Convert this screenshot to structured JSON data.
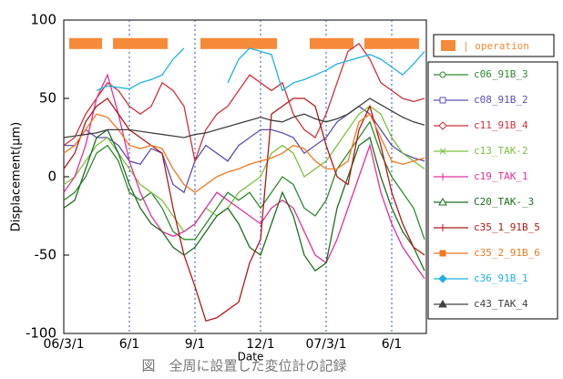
{
  "chart_data": {
    "type": "line",
    "ylabel": "Displacement(μm)",
    "xlabel": "Date",
    "caption": "図　全周に設置した変位計の記録",
    "ylim": [
      -100,
      100
    ],
    "yticks": [
      -100,
      -50,
      0,
      50,
      100
    ],
    "grid": true,
    "categories": [
      "06/3/1",
      null,
      null,
      null,
      null,
      null,
      "6/1",
      null,
      null,
      null,
      null,
      null,
      "9/1",
      null,
      null,
      null,
      null,
      null,
      "12/1",
      null,
      null,
      null,
      null,
      null,
      "07/3/1",
      null,
      null,
      null,
      null,
      null,
      "6/1",
      null,
      null,
      null
    ],
    "operation": {
      "name": "| operation",
      "color": "#f58a3a",
      "values": [
        null,
        85,
        85,
        85,
        null,
        85,
        85,
        85,
        85,
        85,
        null,
        null,
        null,
        85,
        85,
        85,
        85,
        85,
        85,
        85,
        null,
        null,
        null,
        85,
        85,
        85,
        85,
        null,
        85,
        85,
        85,
        85,
        85,
        null
      ]
    },
    "series": [
      {
        "name": "c06_91B_3",
        "color": "#2e8b2e",
        "marker": "circle",
        "values": [
          -15,
          -10,
          0,
          15,
          20,
          10,
          -10,
          -15,
          -10,
          -20,
          -35,
          -40,
          -40,
          -30,
          -20,
          -10,
          -15,
          -10,
          -20,
          -10,
          0,
          -5,
          -20,
          -25,
          -15,
          5,
          15,
          25,
          35,
          15,
          0,
          -10,
          -20,
          -40
        ]
      },
      {
        "name": "c08_91B_2",
        "color": "#5a4fb0",
        "marker": "square",
        "values": [
          20,
          20,
          30,
          25,
          25,
          20,
          10,
          8,
          18,
          15,
          -5,
          -10,
          10,
          20,
          15,
          10,
          20,
          25,
          30,
          30,
          28,
          25,
          15,
          20,
          25,
          35,
          40,
          45,
          40,
          30,
          20,
          15,
          12,
          10
        ]
      },
      {
        "name": "c11_91B_4",
        "color": "#d0303a",
        "marker": "diamond",
        "values": [
          20,
          25,
          40,
          50,
          60,
          55,
          45,
          40,
          45,
          60,
          55,
          45,
          10,
          30,
          40,
          45,
          55,
          65,
          60,
          55,
          60,
          40,
          30,
          25,
          40,
          60,
          80,
          85,
          75,
          60,
          55,
          50,
          48,
          50
        ]
      },
      {
        "name": "c13_TAK-2",
        "color": "#7cc040",
        "marker": "x",
        "values": [
          -5,
          0,
          10,
          20,
          25,
          15,
          5,
          -5,
          -10,
          -15,
          -25,
          -35,
          -30,
          -20,
          -25,
          -20,
          -10,
          -5,
          0,
          15,
          20,
          15,
          0,
          5,
          10,
          20,
          30,
          40,
          45,
          40,
          25,
          15,
          10,
          5
        ]
      },
      {
        "name": "c19_TAK_1",
        "color": "#e0309a",
        "marker": "plus",
        "values": [
          -10,
          0,
          20,
          50,
          65,
          40,
          10,
          -10,
          -25,
          -35,
          -38,
          -35,
          -30,
          -20,
          -10,
          -15,
          -20,
          -25,
          -30,
          -20,
          -15,
          -20,
          -35,
          -50,
          -55,
          -40,
          -20,
          0,
          20,
          -10,
          -30,
          -45,
          -55,
          -65
        ]
      },
      {
        "name": "C20_TAK-_3",
        "color": "#1f6e1f",
        "marker": "triangle",
        "values": [
          -20,
          -15,
          5,
          25,
          30,
          15,
          -5,
          -20,
          -30,
          -35,
          -45,
          -50,
          -45,
          -35,
          -25,
          -20,
          -30,
          -45,
          -50,
          -30,
          -10,
          -25,
          -50,
          -60,
          -55,
          -20,
          0,
          20,
          25,
          0,
          -20,
          -35,
          -45,
          -60
        ]
      },
      {
        "name": "c35_1_91B_5",
        "color": "#b01818",
        "marker": "plus",
        "values": [
          5,
          15,
          35,
          45,
          50,
          40,
          30,
          25,
          20,
          15,
          -20,
          -50,
          -70,
          -92,
          -90,
          -85,
          -80,
          -55,
          -40,
          40,
          45,
          50,
          50,
          45,
          20,
          0,
          -5,
          30,
          45,
          20,
          -10,
          -30,
          -45,
          -50
        ]
      },
      {
        "name": "c35_2_91B_6",
        "color": "#f07820",
        "marker": "filled-square",
        "values": [
          15,
          20,
          30,
          40,
          38,
          30,
          20,
          18,
          20,
          18,
          5,
          -5,
          -10,
          -5,
          0,
          3,
          5,
          8,
          10,
          12,
          15,
          20,
          18,
          10,
          5,
          5,
          10,
          35,
          40,
          25,
          10,
          8,
          10,
          12
        ]
      },
      {
        "name": "c36_91B_1",
        "color": "#1fb0e0",
        "marker": "filled-diamond",
        "values": [
          null,
          null,
          null,
          55,
          58,
          57,
          56,
          60,
          62,
          65,
          75,
          82,
          null,
          null,
          null,
          60,
          75,
          82,
          80,
          78,
          55,
          60,
          62,
          65,
          68,
          72,
          74,
          76,
          78,
          75,
          70,
          65,
          72,
          80
        ]
      },
      {
        "name": "c43_TAK_4",
        "color": "#404040",
        "marker": "filled-triangle",
        "values": [
          25,
          26,
          27,
          28,
          30,
          30,
          30,
          29,
          28,
          27,
          26,
          25,
          27,
          28,
          30,
          32,
          34,
          36,
          38,
          36,
          35,
          38,
          40,
          37,
          35,
          37,
          40,
          45,
          50,
          46,
          42,
          38,
          35,
          33
        ]
      }
    ]
  }
}
